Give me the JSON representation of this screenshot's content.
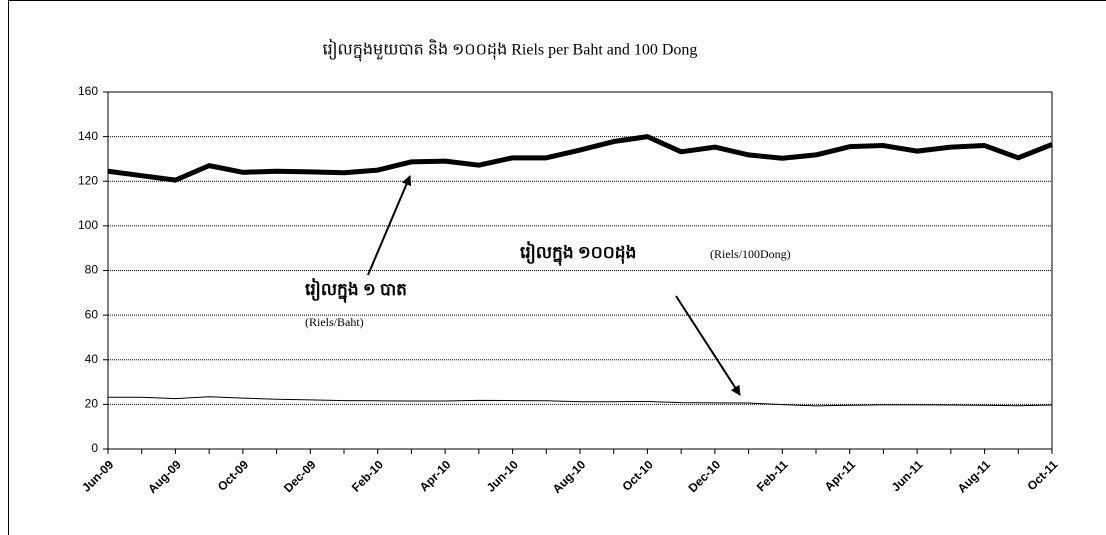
{
  "chart_data": {
    "type": "line",
    "title": "រៀលក្នុងមួយបាត និង ១០០ដុង Riels per Baht and 100 Dong",
    "categories": [
      "Jun-09",
      null,
      "Aug-09",
      null,
      "Oct-09",
      null,
      "Dec-09",
      null,
      "Feb-10",
      null,
      "Apr-10",
      null,
      "Jun-10",
      null,
      "Aug-10",
      null,
      "Oct-10",
      null,
      "Dec-10",
      null,
      "Feb-11",
      null,
      "Apr-11",
      null,
      "Jun-11",
      null,
      "Aug-11",
      null,
      "Oct-11"
    ],
    "series": [
      {
        "color": "#000000",
        "line_width": 5,
        "values": [
          124.5,
          122.5,
          120.5,
          127,
          124,
          124.5,
          124.2,
          123.8,
          125,
          128.7,
          129,
          127.2,
          130.5,
          130.5,
          134,
          137.8,
          140,
          133.2,
          135.3,
          131.8,
          130.3,
          131.8,
          135.5,
          136,
          133.5,
          135.3,
          136,
          130.5,
          136.5
        ]
      },
      {
        "color": "#000000",
        "line_width": 1,
        "values": [
          23.2,
          23.2,
          22.6,
          23.4,
          22.8,
          22.3,
          22,
          21.7,
          21.6,
          21.5,
          21.5,
          21.8,
          21.7,
          21.6,
          21.2,
          21.2,
          21.3,
          20.8,
          20.7,
          20.6,
          19.9,
          19.3,
          19.6,
          19.8,
          19.8,
          19.7,
          19.6,
          19.4,
          19.7
        ]
      }
    ],
    "annotations": [
      "រៀលក្នុង ១ បាត",
      "(Riels/Baht)",
      "រៀលក្នុង ១០០ដុង",
      "(Riels/100Dong)"
    ],
    "ylim": [
      0,
      160
    ],
    "yticks": [
      0,
      20,
      40,
      60,
      80,
      100,
      120,
      140,
      160
    ],
    "grid": true
  }
}
